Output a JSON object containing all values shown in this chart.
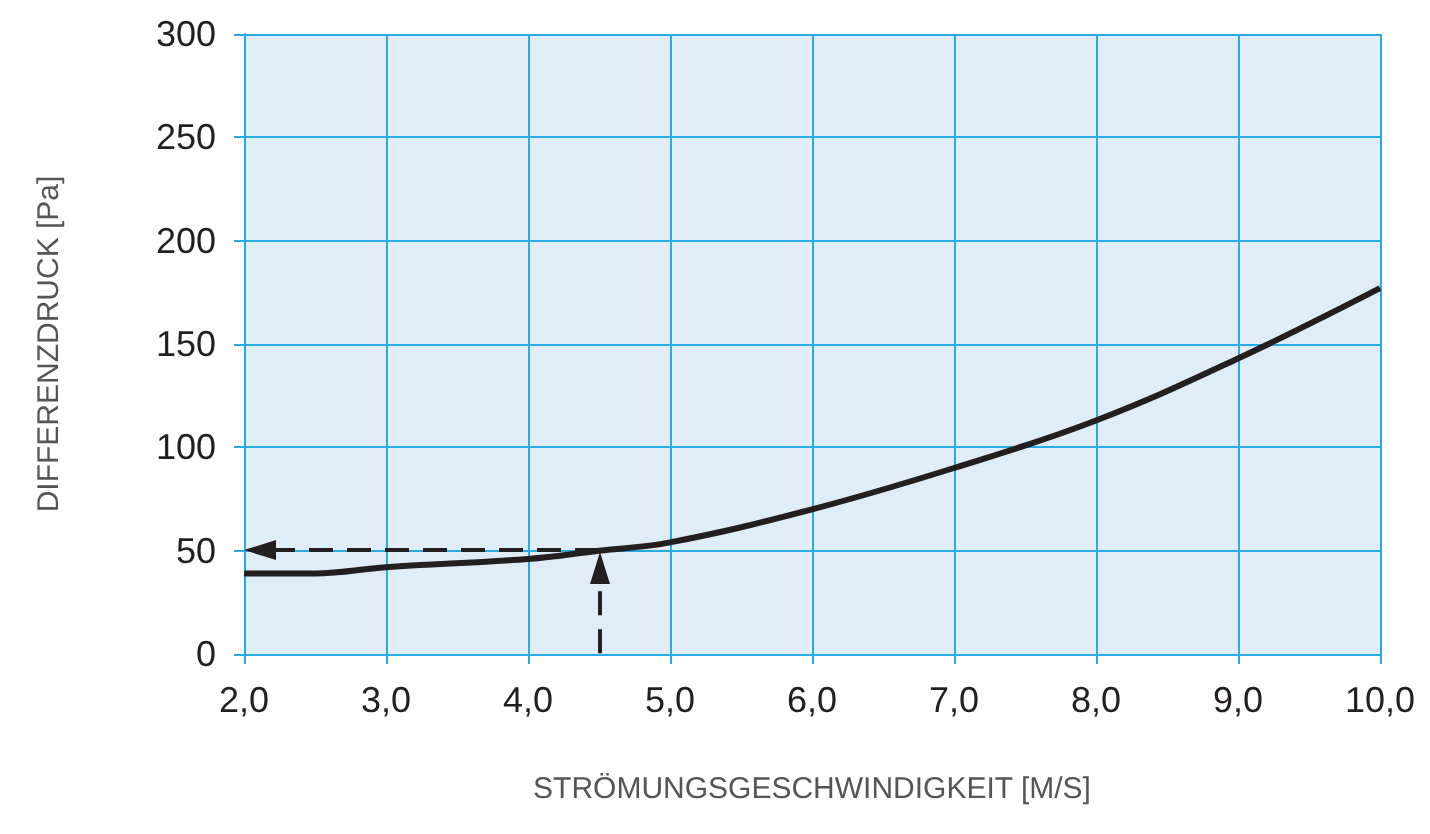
{
  "chart_data": {
    "type": "line",
    "xlabel": "STRÖMUNGSGESCHWINDIGKEIT [M/S]",
    "ylabel": "DIFFERENZDRUCK [Pa]",
    "xlim": [
      2,
      10
    ],
    "xticks": [
      {
        "value": 2,
        "label": "2,0"
      },
      {
        "value": 3,
        "label": "3,0"
      },
      {
        "value": 4,
        "label": "4,0"
      },
      {
        "value": 5,
        "label": "5,0"
      },
      {
        "value": 6,
        "label": "6,0"
      },
      {
        "value": 7,
        "label": "7,0"
      },
      {
        "value": 8,
        "label": "8,0"
      },
      {
        "value": 9,
        "label": "9,0"
      },
      {
        "value": 10,
        "label": "10,0"
      }
    ],
    "ylim": [
      0,
      300
    ],
    "yticks": [
      0,
      50,
      100,
      150,
      200,
      250,
      300
    ],
    "grid": true,
    "marker": "none",
    "series": [
      {
        "color": "#231f20",
        "x": [
          2,
          2.5,
          3,
          4,
          4.5,
          5,
          6,
          7,
          8,
          9,
          10
        ],
        "values": [
          39,
          39,
          42,
          46,
          50,
          54,
          70,
          90,
          113,
          143,
          177
        ],
        "line_style": "solid"
      }
    ]
  }
}
